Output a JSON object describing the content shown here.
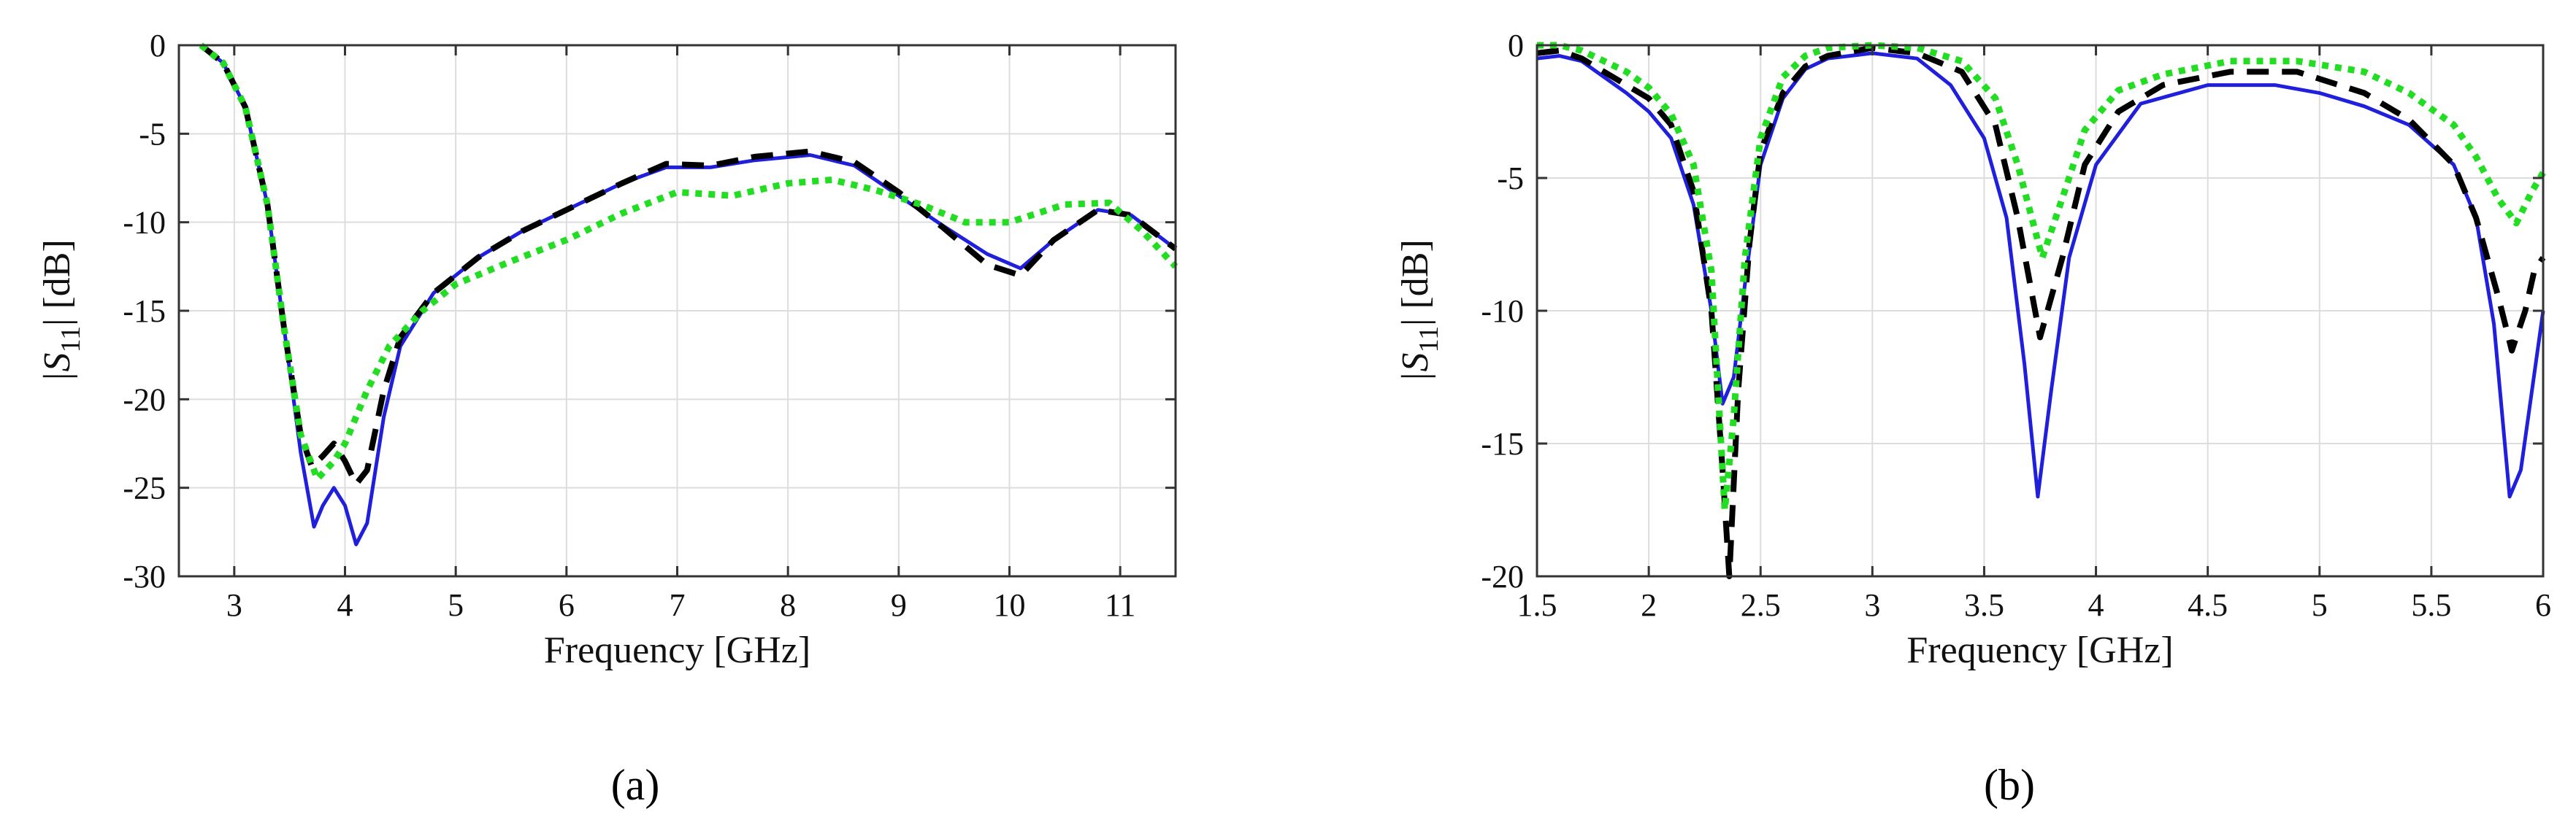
{
  "chart_data": [
    {
      "type": "line",
      "panel_label": "a",
      "xlabel": "Frequency [GHz]",
      "ylabel_main": "|S",
      "ylabel_sub": "11",
      "ylabel_tail": "| [dB]",
      "xlim": [
        2.5,
        11.5
      ],
      "ylim": [
        -30,
        0
      ],
      "xticks": [
        3,
        4,
        5,
        6,
        7,
        8,
        9,
        10,
        11
      ],
      "yticks": [
        0,
        -5,
        -10,
        -15,
        -20,
        -25,
        -30
      ],
      "grid": true,
      "series": [
        {
          "color": "#1f1fdc",
          "style": "solid",
          "x": [
            2.7,
            2.9,
            3.1,
            3.3,
            3.45,
            3.6,
            3.72,
            3.8,
            3.9,
            4.0,
            4.1,
            4.2,
            4.35,
            4.5,
            4.8,
            5.2,
            5.6,
            6.0,
            6.5,
            6.9,
            7.3,
            7.7,
            8.2,
            8.6,
            9.0,
            9.4,
            9.8,
            10.1,
            10.4,
            10.8,
            11.1,
            11.5
          ],
          "y": [
            0.0,
            -1.0,
            -3.5,
            -9.0,
            -16.0,
            -23.0,
            -27.2,
            -26.0,
            -25.0,
            -26.0,
            -28.2,
            -27.0,
            -21.0,
            -17.0,
            -14.0,
            -12.0,
            -10.5,
            -9.3,
            -7.8,
            -6.9,
            -6.9,
            -6.5,
            -6.2,
            -6.8,
            -8.5,
            -10.2,
            -11.8,
            -12.6,
            -11.0,
            -9.3,
            -9.6,
            -11.5
          ]
        },
        {
          "color": "#000000",
          "style": "dashed",
          "x": [
            2.7,
            2.9,
            3.1,
            3.3,
            3.45,
            3.6,
            3.7,
            3.8,
            3.9,
            4.0,
            4.1,
            4.2,
            4.35,
            4.5,
            4.8,
            5.2,
            5.6,
            6.0,
            6.5,
            6.9,
            7.3,
            7.7,
            8.2,
            8.6,
            9.0,
            9.4,
            9.8,
            10.1,
            10.4,
            10.8,
            11.1,
            11.5
          ],
          "y": [
            0.0,
            -1.0,
            -3.5,
            -9.0,
            -16.0,
            -22.0,
            -23.8,
            -23.2,
            -22.5,
            -23.5,
            -24.8,
            -24.0,
            -19.5,
            -16.5,
            -14.0,
            -12.0,
            -10.5,
            -9.3,
            -7.8,
            -6.7,
            -6.8,
            -6.3,
            -6.0,
            -6.6,
            -8.3,
            -10.3,
            -12.4,
            -13.0,
            -11.0,
            -9.3,
            -9.6,
            -11.5
          ]
        },
        {
          "color": "#22dd22",
          "style": "dotted",
          "x": [
            2.7,
            2.9,
            3.1,
            3.3,
            3.45,
            3.6,
            3.75,
            3.9,
            4.0,
            4.2,
            4.4,
            4.7,
            5.0,
            5.5,
            6.0,
            6.5,
            7.0,
            7.5,
            8.0,
            8.4,
            8.8,
            9.2,
            9.6,
            10.0,
            10.5,
            10.9,
            11.2,
            11.5
          ],
          "y": [
            0.0,
            -1.0,
            -3.5,
            -9.0,
            -16.0,
            -22.0,
            -24.5,
            -23.5,
            -22.5,
            -19.5,
            -17.0,
            -15.0,
            -13.5,
            -12.2,
            -11.0,
            -9.5,
            -8.3,
            -8.5,
            -7.8,
            -7.6,
            -8.2,
            -9.0,
            -10.0,
            -10.0,
            -9.0,
            -8.9,
            -10.5,
            -12.5
          ]
        }
      ]
    },
    {
      "type": "line",
      "panel_label": "b",
      "xlabel": "Frequency [GHz]",
      "ylabel_main": "|S",
      "ylabel_sub": "11",
      "ylabel_tail": "| [dB]",
      "xlim": [
        1.5,
        6.0
      ],
      "ylim": [
        -20,
        0
      ],
      "xticks": [
        1.5,
        2,
        2.5,
        3,
        3.5,
        4,
        4.5,
        5,
        5.5,
        6
      ],
      "yticks": [
        0,
        -5,
        -10,
        -15,
        -20
      ],
      "grid": true,
      "series": [
        {
          "color": "#1f1fdc",
          "style": "solid",
          "x": [
            1.5,
            1.6,
            1.7,
            1.8,
            1.9,
            2.0,
            2.1,
            2.2,
            2.28,
            2.33,
            2.38,
            2.43,
            2.5,
            2.6,
            2.7,
            2.8,
            3.0,
            3.2,
            3.35,
            3.5,
            3.6,
            3.68,
            3.74,
            3.8,
            3.88,
            4.0,
            4.2,
            4.5,
            4.8,
            5.0,
            5.2,
            5.4,
            5.6,
            5.7,
            5.78,
            5.85,
            5.9,
            5.95,
            6.0
          ],
          "y": [
            -0.5,
            -0.4,
            -0.6,
            -1.2,
            -1.8,
            -2.5,
            -3.5,
            -6.0,
            -10.0,
            -13.5,
            -12.5,
            -9.0,
            -4.5,
            -2.0,
            -0.9,
            -0.5,
            -0.3,
            -0.5,
            -1.5,
            -3.5,
            -6.5,
            -12.0,
            -17.0,
            -13.0,
            -8.0,
            -4.5,
            -2.2,
            -1.5,
            -1.5,
            -1.8,
            -2.3,
            -3.0,
            -4.5,
            -6.5,
            -10.5,
            -17.0,
            -16.0,
            -13.0,
            -10.0
          ]
        },
        {
          "color": "#000000",
          "style": "dashed",
          "x": [
            1.5,
            1.6,
            1.7,
            1.8,
            1.9,
            2.0,
            2.1,
            2.2,
            2.28,
            2.33,
            2.36,
            2.4,
            2.45,
            2.5,
            2.6,
            2.7,
            2.8,
            3.0,
            3.2,
            3.4,
            3.55,
            3.65,
            3.75,
            3.85,
            3.95,
            4.1,
            4.3,
            4.6,
            4.9,
            5.2,
            5.4,
            5.6,
            5.7,
            5.8,
            5.86,
            5.92,
            5.96,
            6.0
          ],
          "y": [
            -0.3,
            -0.2,
            -0.5,
            -1.0,
            -1.5,
            -2.0,
            -3.0,
            -5.5,
            -10.0,
            -16.0,
            -20.0,
            -13.0,
            -7.5,
            -4.0,
            -1.8,
            -0.8,
            -0.4,
            -0.1,
            -0.3,
            -1.0,
            -3.0,
            -6.5,
            -11.0,
            -8.0,
            -4.5,
            -2.5,
            -1.5,
            -1.0,
            -1.0,
            -1.8,
            -2.8,
            -4.5,
            -6.5,
            -9.5,
            -11.5,
            -10.0,
            -8.5,
            -8.0
          ]
        },
        {
          "color": "#22dd22",
          "style": "dotted",
          "x": [
            1.5,
            1.6,
            1.7,
            1.8,
            1.9,
            2.0,
            2.1,
            2.2,
            2.28,
            2.34,
            2.38,
            2.43,
            2.5,
            2.6,
            2.7,
            2.8,
            3.0,
            3.2,
            3.4,
            3.55,
            3.65,
            3.76,
            3.86,
            3.95,
            4.1,
            4.3,
            4.6,
            4.9,
            5.2,
            5.4,
            5.6,
            5.7,
            5.8,
            5.88,
            5.95,
            6.0
          ],
          "y": [
            0.0,
            0.0,
            -0.2,
            -0.6,
            -1.0,
            -1.6,
            -2.6,
            -4.5,
            -8.5,
            -17.5,
            -14.0,
            -8.0,
            -3.5,
            -1.2,
            -0.4,
            -0.1,
            0.0,
            -0.1,
            -0.6,
            -2.0,
            -4.5,
            -8.0,
            -5.5,
            -3.2,
            -1.7,
            -1.1,
            -0.6,
            -0.6,
            -1.0,
            -1.8,
            -3.0,
            -4.2,
            -5.8,
            -6.7,
            -5.5,
            -4.8
          ]
        }
      ]
    }
  ],
  "captions": {
    "a": "(a)",
    "b": "(b)"
  }
}
